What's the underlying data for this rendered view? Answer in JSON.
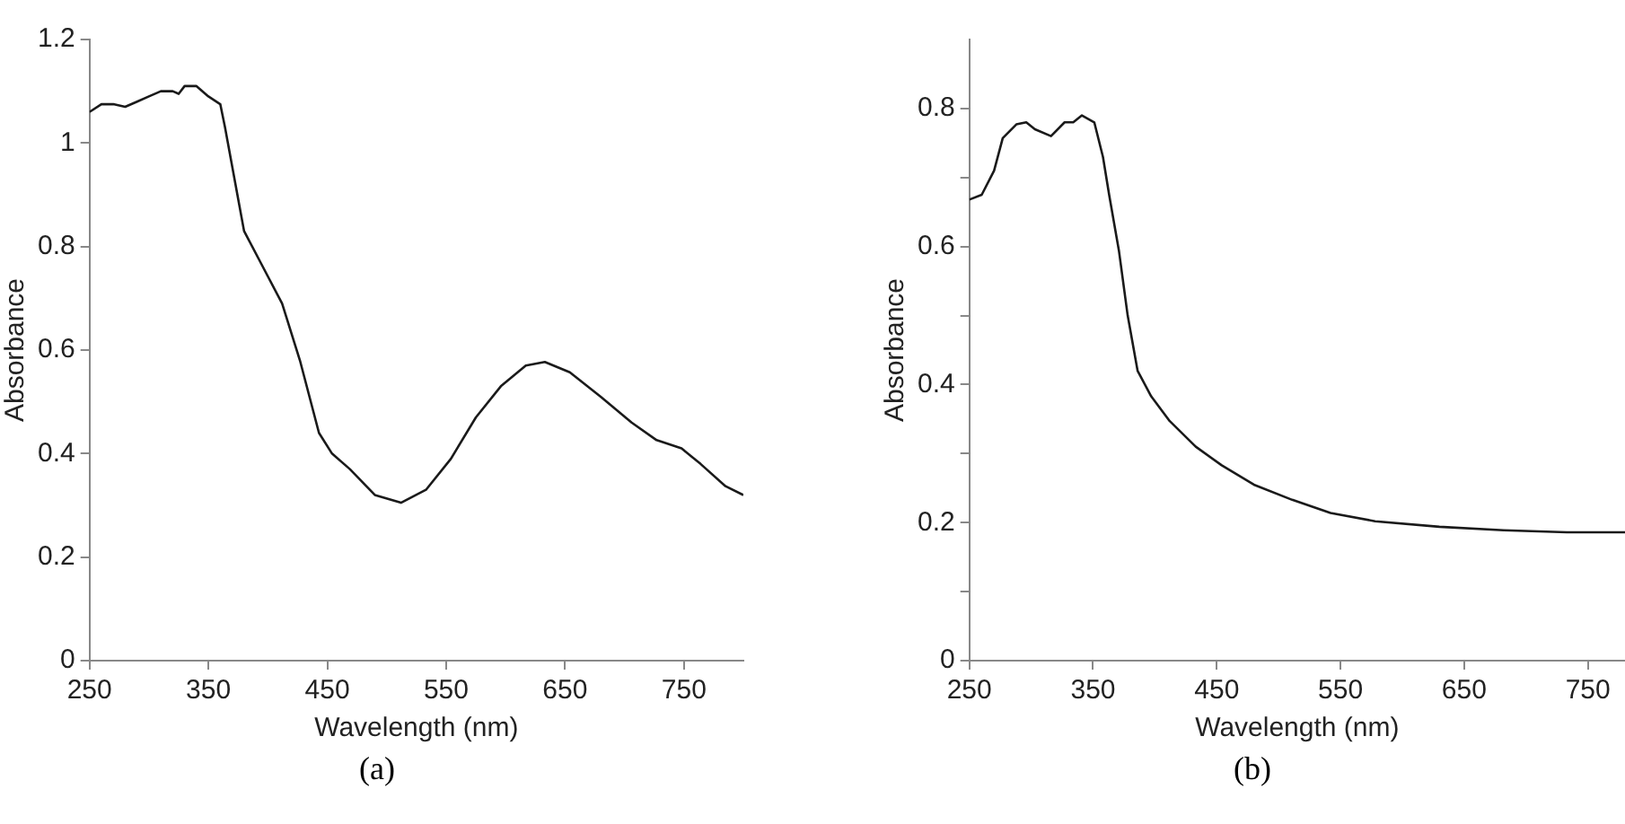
{
  "chart_data": [
    {
      "type": "line",
      "xlabel": "Wavelength (nm)",
      "ylabel": "Absorbance",
      "annotations": [
        "(a)"
      ],
      "grid": false,
      "legend": false,
      "marker": "none",
      "line_style": "solid",
      "xlim": [
        250,
        800
      ],
      "xticks": [
        250,
        350,
        450,
        550,
        650,
        750
      ],
      "ylim": [
        0,
        1.2
      ],
      "yticks": [
        0,
        0.2,
        0.4,
        0.6,
        0.8,
        1,
        1.2
      ],
      "series": [
        {
          "color": "#1a1a1a",
          "x": [
            250,
            260,
            270,
            280,
            290,
            300,
            310,
            320,
            325,
            330,
            340,
            350,
            360,
            364,
            380,
            396,
            412,
            427,
            443,
            454,
            469,
            490,
            512,
            533,
            554,
            575,
            596,
            617,
            633,
            654,
            680,
            706,
            727,
            748,
            764,
            785,
            800
          ],
          "values": [
            1.06,
            1.075,
            1.075,
            1.07,
            1.08,
            1.09,
            1.1,
            1.1,
            1.095,
            1.11,
            1.11,
            1.09,
            1.075,
            1.03,
            0.83,
            0.76,
            0.69,
            0.58,
            0.44,
            0.4,
            0.37,
            0.32,
            0.305,
            0.33,
            0.39,
            0.47,
            0.53,
            0.57,
            0.577,
            0.557,
            0.51,
            0.46,
            0.426,
            0.41,
            0.38,
            0.337,
            0.32
          ]
        }
      ]
    },
    {
      "type": "line",
      "xlabel": "Wavelength (nm)",
      "ylabel": "Absorbance",
      "annotations": [
        "(b)"
      ],
      "grid": false,
      "legend": false,
      "marker": "none",
      "line_style": "solid",
      "xlim": [
        250,
        780
      ],
      "xticks": [
        250,
        350,
        450,
        550,
        650,
        750
      ],
      "ylim": [
        0,
        0.9
      ],
      "yticks": [
        0,
        {
          "value": 0.1,
          "label": null
        },
        0.2,
        {
          "value": 0.3,
          "label": null
        },
        0.4,
        {
          "value": 0.5,
          "label": null
        },
        0.6,
        {
          "value": 0.7,
          "label": null
        },
        0.8
      ],
      "series": [
        {
          "color": "#1a1a1a",
          "x": [
            250,
            260,
            270,
            277,
            288,
            296,
            303,
            316,
            327,
            334,
            341,
            351,
            358,
            363,
            371,
            378,
            386,
            397,
            412,
            433,
            454,
            480,
            511,
            542,
            578,
            630,
            682,
            733,
            780
          ],
          "values": [
            0.668,
            0.675,
            0.71,
            0.757,
            0.777,
            0.78,
            0.77,
            0.76,
            0.78,
            0.78,
            0.79,
            0.78,
            0.73,
            0.675,
            0.593,
            0.5,
            0.42,
            0.383,
            0.347,
            0.31,
            0.283,
            0.255,
            0.233,
            0.214,
            0.202,
            0.194,
            0.189,
            0.186,
            0.186
          ]
        }
      ]
    }
  ]
}
